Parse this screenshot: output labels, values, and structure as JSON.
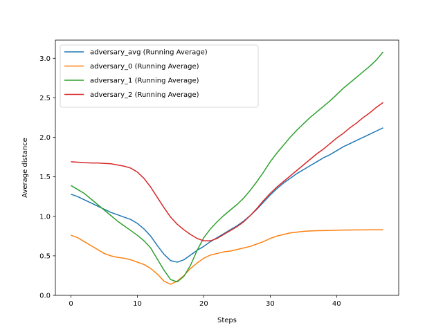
{
  "chart_data": {
    "type": "line",
    "title": "",
    "xlabel": "Steps",
    "ylabel": "Average distance",
    "xlim": [
      -2.35,
      49.35
    ],
    "ylim": [
      0.0,
      3.23
    ],
    "xticks": [
      0,
      10,
      20,
      30,
      40
    ],
    "yticks": [
      0.0,
      0.5,
      1.0,
      1.5,
      2.0,
      2.5,
      3.0
    ],
    "xtick_labels": [
      "0",
      "10",
      "20",
      "30",
      "40"
    ],
    "ytick_labels": [
      "0.0",
      "0.5",
      "1.0",
      "1.5",
      "2.0",
      "2.5",
      "3.0"
    ],
    "grid": false,
    "legend_position": "upper-left",
    "x": [
      0,
      1,
      2,
      3,
      4,
      5,
      6,
      7,
      8,
      9,
      10,
      11,
      12,
      13,
      14,
      15,
      16,
      17,
      18,
      19,
      20,
      21,
      22,
      23,
      24,
      25,
      26,
      27,
      28,
      29,
      30,
      31,
      32,
      33,
      34,
      35,
      36,
      37,
      38,
      39,
      40,
      41,
      42,
      43,
      44,
      45,
      46,
      47
    ],
    "series": [
      {
        "name": "adversary_avg (Running Average)",
        "color": "#1f77b4",
        "values": [
          1.28,
          1.25,
          1.21,
          1.17,
          1.13,
          1.09,
          1.05,
          1.02,
          0.99,
          0.96,
          0.91,
          0.84,
          0.75,
          0.63,
          0.52,
          0.44,
          0.42,
          0.45,
          0.51,
          0.57,
          0.62,
          0.68,
          0.73,
          0.78,
          0.83,
          0.88,
          0.94,
          1.01,
          1.09,
          1.18,
          1.27,
          1.35,
          1.42,
          1.48,
          1.54,
          1.59,
          1.64,
          1.69,
          1.74,
          1.78,
          1.83,
          1.88,
          1.92,
          1.96,
          2.0,
          2.04,
          2.08,
          2.12
        ]
      },
      {
        "name": "adversary_0 (Running Average)",
        "color": "#ff7f0e",
        "values": [
          0.76,
          0.73,
          0.68,
          0.63,
          0.58,
          0.53,
          0.5,
          0.48,
          0.47,
          0.45,
          0.42,
          0.39,
          0.34,
          0.27,
          0.18,
          0.14,
          0.18,
          0.25,
          0.34,
          0.41,
          0.47,
          0.51,
          0.53,
          0.55,
          0.56,
          0.58,
          0.6,
          0.62,
          0.65,
          0.68,
          0.72,
          0.75,
          0.77,
          0.79,
          0.8,
          0.81,
          0.815,
          0.818,
          0.82,
          0.822,
          0.824,
          0.826,
          0.827,
          0.828,
          0.828,
          0.829,
          0.829,
          0.83
        ]
      },
      {
        "name": "adversary_1 (Running Average)",
        "color": "#2ca02c",
        "values": [
          1.39,
          1.34,
          1.29,
          1.22,
          1.15,
          1.08,
          1.01,
          0.94,
          0.88,
          0.82,
          0.76,
          0.69,
          0.6,
          0.46,
          0.32,
          0.2,
          0.17,
          0.24,
          0.38,
          0.57,
          0.73,
          0.84,
          0.93,
          1.01,
          1.08,
          1.15,
          1.23,
          1.33,
          1.44,
          1.56,
          1.69,
          1.8,
          1.9,
          2.0,
          2.09,
          2.17,
          2.25,
          2.32,
          2.39,
          2.46,
          2.54,
          2.62,
          2.69,
          2.76,
          2.83,
          2.9,
          2.98,
          3.08
        ]
      },
      {
        "name": "adversary_2 (Running Average)",
        "color": "#d62728",
        "values": [
          1.69,
          1.685,
          1.68,
          1.675,
          1.675,
          1.67,
          1.665,
          1.65,
          1.635,
          1.61,
          1.56,
          1.48,
          1.37,
          1.24,
          1.11,
          0.99,
          0.9,
          0.83,
          0.77,
          0.72,
          0.69,
          0.69,
          0.72,
          0.77,
          0.82,
          0.87,
          0.93,
          1.01,
          1.1,
          1.2,
          1.29,
          1.37,
          1.44,
          1.51,
          1.58,
          1.65,
          1.72,
          1.79,
          1.85,
          1.92,
          1.99,
          2.05,
          2.12,
          2.18,
          2.25,
          2.31,
          2.38,
          2.44
        ]
      }
    ]
  }
}
